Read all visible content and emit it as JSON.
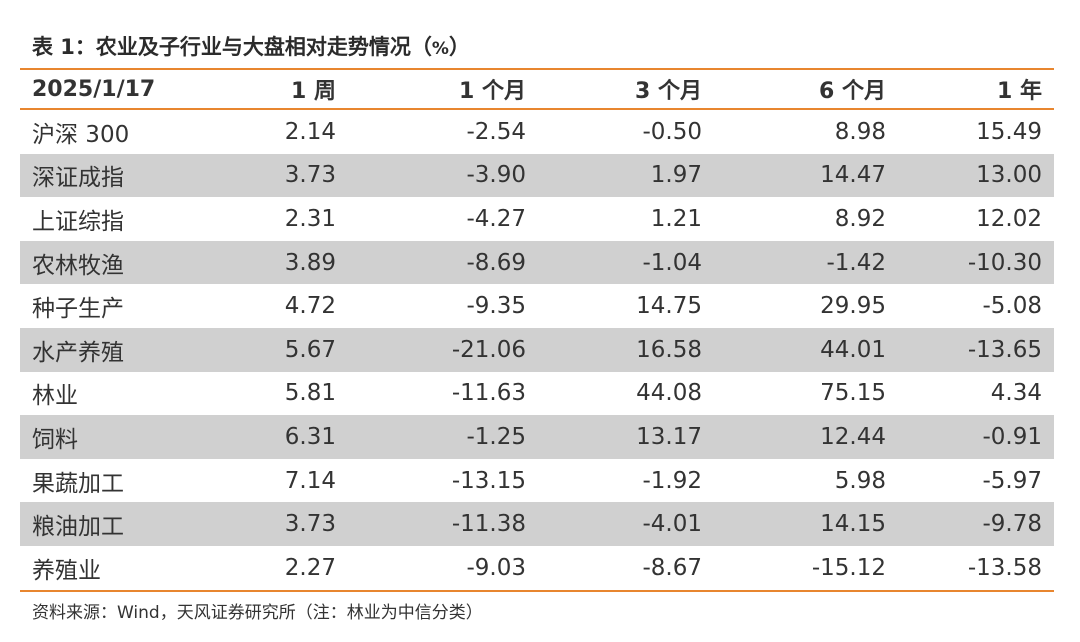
{
  "table_title": "表 1：农业及子行业与大盘相对走势情况（",
  "table_title_unit": "%",
  "table_title_close": "）",
  "header": {
    "date": "2025/1/17",
    "columns": [
      "1 周",
      "1 个月",
      "3 个月",
      "6 个月",
      "1 年"
    ]
  },
  "rows": [
    {
      "name": "沪深 300",
      "values": [
        "2.14",
        "-2.54",
        "-0.50",
        "8.98",
        "15.49"
      ]
    },
    {
      "name": "深证成指",
      "values": [
        "3.73",
        "-3.90",
        "1.97",
        "14.47",
        "13.00"
      ]
    },
    {
      "name": "上证综指",
      "values": [
        "2.31",
        "-4.27",
        "1.21",
        "8.92",
        "12.02"
      ]
    },
    {
      "name": "农林牧渔",
      "values": [
        "3.89",
        "-8.69",
        "-1.04",
        "-1.42",
        "-10.30"
      ]
    },
    {
      "name": "种子生产",
      "values": [
        "4.72",
        "-9.35",
        "14.75",
        "29.95",
        "-5.08"
      ]
    },
    {
      "name": "水产养殖",
      "values": [
        "5.67",
        "-21.06",
        "16.58",
        "44.01",
        "-13.65"
      ]
    },
    {
      "name": "林业",
      "values": [
        "5.81",
        "-11.63",
        "44.08",
        "75.15",
        "4.34"
      ]
    },
    {
      "name": "饲料",
      "values": [
        "6.31",
        "-1.25",
        "13.17",
        "12.44",
        "-0.91"
      ]
    },
    {
      "name": "果蔬加工",
      "values": [
        "7.14",
        "-13.15",
        "-1.92",
        "5.98",
        "-5.97"
      ]
    },
    {
      "name": "粮油加工",
      "values": [
        "3.73",
        "-11.38",
        "-4.01",
        "14.15",
        "-9.78"
      ]
    },
    {
      "name": "养殖业",
      "values": [
        "2.27",
        "-9.03",
        "-8.67",
        "-15.12",
        "-13.58"
      ]
    }
  ],
  "source": "资料来源：Wind，天风证券研究所（注：林业为中信分类）",
  "colors": {
    "accent_rule": "#e8862f",
    "row_shade": "#d0d0d0",
    "text": "#333333"
  }
}
